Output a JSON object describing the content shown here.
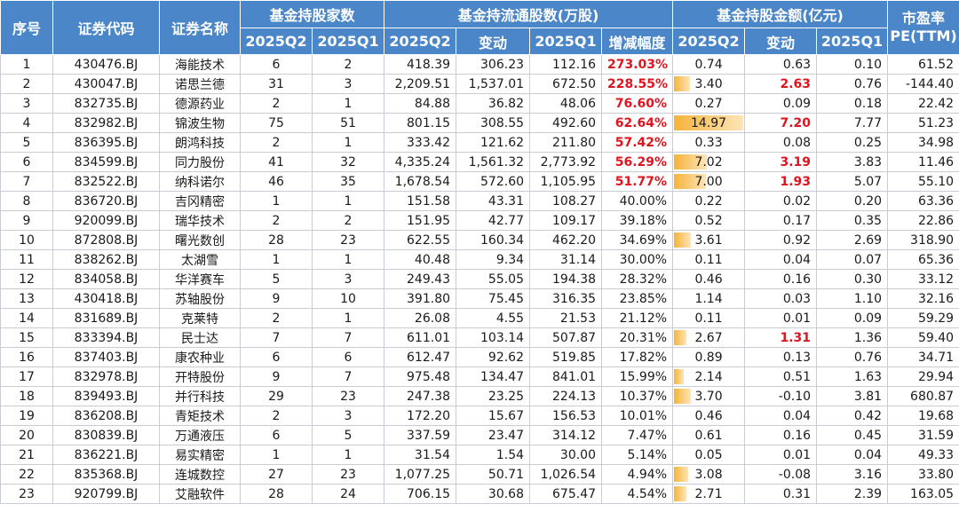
{
  "headers": {
    "rank": "序号",
    "code": "证券代码",
    "name": "证券名称",
    "holders": "基金持股家数",
    "shares": "基金持流通股数(万股)",
    "value": "基金持股金额(亿元)",
    "pe_line1": "市盈率",
    "pe_line2": "PE(TTM)",
    "q2": "2025Q2",
    "q1": "2025Q1",
    "change": "变动",
    "growth": "增减幅度"
  },
  "colors": {
    "header_bg": "#4a86c8",
    "highlight_red": "#e0141e",
    "bar": "#f6b33a"
  },
  "bar_max": 15,
  "rows": [
    {
      "rank": "1",
      "code": "430476.BJ",
      "name": "海能技术",
      "h_q2": "6",
      "h_q1": "2",
      "s_q2": "418.39",
      "s_chg": "306.23",
      "s_q1": "112.16",
      "growth": "273.03%",
      "growth_hl": true,
      "v_q2": "0.74",
      "v_q2_num": 0.74,
      "v_chg": "0.63",
      "v_chg_hl": false,
      "v_q1": "0.10",
      "pe": "61.52"
    },
    {
      "rank": "2",
      "code": "430047.BJ",
      "name": "诺思兰德",
      "h_q2": "31",
      "h_q1": "3",
      "s_q2": "2,209.51",
      "s_chg": "1,537.01",
      "s_q1": "672.50",
      "growth": "228.55%",
      "growth_hl": true,
      "v_q2": "3.40",
      "v_q2_num": 3.4,
      "v_chg": "2.63",
      "v_chg_hl": true,
      "v_q1": "0.76",
      "pe": "-144.40"
    },
    {
      "rank": "3",
      "code": "832735.BJ",
      "name": "德源药业",
      "h_q2": "2",
      "h_q1": "1",
      "s_q2": "84.88",
      "s_chg": "36.82",
      "s_q1": "48.06",
      "growth": "76.60%",
      "growth_hl": true,
      "v_q2": "0.27",
      "v_q2_num": 0.27,
      "v_chg": "0.09",
      "v_chg_hl": false,
      "v_q1": "0.18",
      "pe": "22.42"
    },
    {
      "rank": "4",
      "code": "832982.BJ",
      "name": "锦波生物",
      "h_q2": "75",
      "h_q1": "51",
      "s_q2": "801.15",
      "s_chg": "308.55",
      "s_q1": "492.60",
      "growth": "62.64%",
      "growth_hl": true,
      "v_q2": "14.97",
      "v_q2_num": 14.97,
      "v_chg": "7.20",
      "v_chg_hl": true,
      "v_q1": "7.77",
      "pe": "51.23"
    },
    {
      "rank": "5",
      "code": "836395.BJ",
      "name": "朗鸿科技",
      "h_q2": "2",
      "h_q1": "1",
      "s_q2": "333.42",
      "s_chg": "121.62",
      "s_q1": "211.80",
      "growth": "57.42%",
      "growth_hl": true,
      "v_q2": "0.33",
      "v_q2_num": 0.33,
      "v_chg": "0.08",
      "v_chg_hl": false,
      "v_q1": "0.25",
      "pe": "34.98"
    },
    {
      "rank": "6",
      "code": "834599.BJ",
      "name": "同力股份",
      "h_q2": "41",
      "h_q1": "32",
      "s_q2": "4,335.24",
      "s_chg": "1,561.32",
      "s_q1": "2,773.92",
      "growth": "56.29%",
      "growth_hl": true,
      "v_q2": "7.02",
      "v_q2_num": 7.02,
      "v_chg": "3.19",
      "v_chg_hl": true,
      "v_q1": "3.83",
      "pe": "11.46"
    },
    {
      "rank": "7",
      "code": "832522.BJ",
      "name": "纳科诺尔",
      "h_q2": "46",
      "h_q1": "35",
      "s_q2": "1,678.54",
      "s_chg": "572.60",
      "s_q1": "1,105.95",
      "growth": "51.77%",
      "growth_hl": true,
      "v_q2": "7.00",
      "v_q2_num": 7.0,
      "v_chg": "1.93",
      "v_chg_hl": true,
      "v_q1": "5.07",
      "pe": "55.10"
    },
    {
      "rank": "8",
      "code": "836720.BJ",
      "name": "吉冈精密",
      "h_q2": "1",
      "h_q1": "1",
      "s_q2": "151.58",
      "s_chg": "43.31",
      "s_q1": "108.27",
      "growth": "40.00%",
      "growth_hl": false,
      "v_q2": "0.22",
      "v_q2_num": 0.22,
      "v_chg": "0.02",
      "v_chg_hl": false,
      "v_q1": "0.20",
      "pe": "63.36"
    },
    {
      "rank": "9",
      "code": "920099.BJ",
      "name": "瑞华技术",
      "h_q2": "2",
      "h_q1": "2",
      "s_q2": "151.95",
      "s_chg": "42.77",
      "s_q1": "109.17",
      "growth": "39.18%",
      "growth_hl": false,
      "v_q2": "0.52",
      "v_q2_num": 0.52,
      "v_chg": "0.17",
      "v_chg_hl": false,
      "v_q1": "0.35",
      "pe": "22.86"
    },
    {
      "rank": "10",
      "code": "872808.BJ",
      "name": "曙光数创",
      "h_q2": "28",
      "h_q1": "23",
      "s_q2": "622.55",
      "s_chg": "160.34",
      "s_q1": "462.20",
      "growth": "34.69%",
      "growth_hl": false,
      "v_q2": "3.61",
      "v_q2_num": 3.61,
      "v_chg": "0.92",
      "v_chg_hl": false,
      "v_q1": "2.69",
      "pe": "318.90"
    },
    {
      "rank": "11",
      "code": "838262.BJ",
      "name": "太湖雪",
      "h_q2": "1",
      "h_q1": "1",
      "s_q2": "40.48",
      "s_chg": "9.34",
      "s_q1": "31.14",
      "growth": "30.00%",
      "growth_hl": false,
      "v_q2": "0.11",
      "v_q2_num": 0.11,
      "v_chg": "0.04",
      "v_chg_hl": false,
      "v_q1": "0.07",
      "pe": "65.36"
    },
    {
      "rank": "12",
      "code": "834058.BJ",
      "name": "华洋赛车",
      "h_q2": "5",
      "h_q1": "3",
      "s_q2": "249.43",
      "s_chg": "55.05",
      "s_q1": "194.38",
      "growth": "28.32%",
      "growth_hl": false,
      "v_q2": "0.46",
      "v_q2_num": 0.46,
      "v_chg": "0.16",
      "v_chg_hl": false,
      "v_q1": "0.30",
      "pe": "33.12"
    },
    {
      "rank": "13",
      "code": "430418.BJ",
      "name": "苏轴股份",
      "h_q2": "9",
      "h_q1": "10",
      "s_q2": "391.80",
      "s_chg": "75.45",
      "s_q1": "316.35",
      "growth": "23.85%",
      "growth_hl": false,
      "v_q2": "1.14",
      "v_q2_num": 1.14,
      "v_chg": "0.03",
      "v_chg_hl": false,
      "v_q1": "1.10",
      "pe": "32.16"
    },
    {
      "rank": "14",
      "code": "831689.BJ",
      "name": "克莱特",
      "h_q2": "2",
      "h_q1": "1",
      "s_q2": "26.08",
      "s_chg": "4.55",
      "s_q1": "21.53",
      "growth": "21.12%",
      "growth_hl": false,
      "v_q2": "0.11",
      "v_q2_num": 0.11,
      "v_chg": "0.01",
      "v_chg_hl": false,
      "v_q1": "0.09",
      "pe": "59.29"
    },
    {
      "rank": "15",
      "code": "833394.BJ",
      "name": "民士达",
      "h_q2": "7",
      "h_q1": "7",
      "s_q2": "611.01",
      "s_chg": "103.14",
      "s_q1": "507.87",
      "growth": "20.31%",
      "growth_hl": false,
      "v_q2": "2.67",
      "v_q2_num": 2.67,
      "v_chg": "1.31",
      "v_chg_hl": true,
      "v_q1": "1.36",
      "pe": "59.40"
    },
    {
      "rank": "16",
      "code": "837403.BJ",
      "name": "康农种业",
      "h_q2": "6",
      "h_q1": "6",
      "s_q2": "612.47",
      "s_chg": "92.62",
      "s_q1": "519.85",
      "growth": "17.82%",
      "growth_hl": false,
      "v_q2": "0.89",
      "v_q2_num": 0.89,
      "v_chg": "0.13",
      "v_chg_hl": false,
      "v_q1": "0.76",
      "pe": "34.71"
    },
    {
      "rank": "17",
      "code": "832978.BJ",
      "name": "开特股份",
      "h_q2": "9",
      "h_q1": "7",
      "s_q2": "975.48",
      "s_chg": "134.47",
      "s_q1": "841.01",
      "growth": "15.99%",
      "growth_hl": false,
      "v_q2": "2.14",
      "v_q2_num": 2.14,
      "v_chg": "0.51",
      "v_chg_hl": false,
      "v_q1": "1.63",
      "pe": "29.94"
    },
    {
      "rank": "18",
      "code": "839493.BJ",
      "name": "并行科技",
      "h_q2": "29",
      "h_q1": "23",
      "s_q2": "247.38",
      "s_chg": "23.25",
      "s_q1": "224.13",
      "growth": "10.37%",
      "growth_hl": false,
      "v_q2": "3.70",
      "v_q2_num": 3.7,
      "v_chg": "-0.10",
      "v_chg_hl": false,
      "v_q1": "3.81",
      "pe": "680.87"
    },
    {
      "rank": "19",
      "code": "836208.BJ",
      "name": "青矩技术",
      "h_q2": "2",
      "h_q1": "3",
      "s_q2": "172.20",
      "s_chg": "15.67",
      "s_q1": "156.53",
      "growth": "10.01%",
      "growth_hl": false,
      "v_q2": "0.46",
      "v_q2_num": 0.46,
      "v_chg": "0.04",
      "v_chg_hl": false,
      "v_q1": "0.42",
      "pe": "19.68"
    },
    {
      "rank": "20",
      "code": "830839.BJ",
      "name": "万通液压",
      "h_q2": "6",
      "h_q1": "5",
      "s_q2": "337.59",
      "s_chg": "23.47",
      "s_q1": "314.12",
      "growth": "7.47%",
      "growth_hl": false,
      "v_q2": "0.61",
      "v_q2_num": 0.61,
      "v_chg": "0.16",
      "v_chg_hl": false,
      "v_q1": "0.45",
      "pe": "31.59"
    },
    {
      "rank": "21",
      "code": "836221.BJ",
      "name": "易实精密",
      "h_q2": "1",
      "h_q1": "1",
      "s_q2": "31.54",
      "s_chg": "1.54",
      "s_q1": "30.00",
      "growth": "5.14%",
      "growth_hl": false,
      "v_q2": "0.05",
      "v_q2_num": 0.05,
      "v_chg": "0.01",
      "v_chg_hl": false,
      "v_q1": "0.04",
      "pe": "49.33"
    },
    {
      "rank": "22",
      "code": "835368.BJ",
      "name": "连城数控",
      "h_q2": "27",
      "h_q1": "23",
      "s_q2": "1,077.25",
      "s_chg": "50.71",
      "s_q1": "1,026.54",
      "growth": "4.94%",
      "growth_hl": false,
      "v_q2": "3.08",
      "v_q2_num": 3.08,
      "v_chg": "-0.08",
      "v_chg_hl": false,
      "v_q1": "3.16",
      "pe": "33.80"
    },
    {
      "rank": "23",
      "code": "920799.BJ",
      "name": "艾融软件",
      "h_q2": "28",
      "h_q1": "24",
      "s_q2": "706.15",
      "s_chg": "30.68",
      "s_q1": "675.47",
      "growth": "4.54%",
      "growth_hl": false,
      "v_q2": "2.71",
      "v_q2_num": 2.71,
      "v_chg": "0.31",
      "v_chg_hl": false,
      "v_q1": "2.39",
      "pe": "163.05"
    }
  ]
}
